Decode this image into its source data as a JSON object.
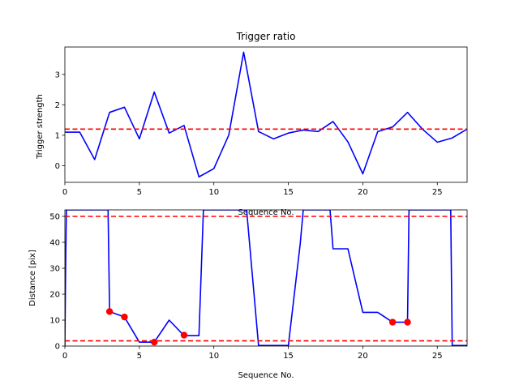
{
  "chart_data": [
    {
      "type": "line",
      "title": "Trigger ratio",
      "xlabel": "Sequence No.",
      "ylabel": "Trigger strength",
      "xlim": [
        0,
        27
      ],
      "ylim": [
        -0.55,
        3.9
      ],
      "xticks": [
        0,
        5,
        10,
        15,
        20,
        25
      ],
      "yticks": [
        0,
        1,
        2,
        3
      ],
      "grid": false,
      "series": [
        {
          "color": "#0000ff",
          "x": [
            0,
            1,
            2,
            3,
            4,
            5,
            6,
            7,
            8,
            9,
            10,
            11,
            12,
            13,
            14,
            15,
            16,
            17,
            18,
            19,
            20,
            21,
            22,
            23,
            24,
            25,
            26,
            27
          ],
          "y": [
            1.1,
            1.1,
            0.2,
            1.75,
            1.92,
            0.88,
            2.42,
            1.07,
            1.32,
            -0.37,
            -0.1,
            1.0,
            3.73,
            1.12,
            0.88,
            1.07,
            1.17,
            1.12,
            1.45,
            0.78,
            -0.27,
            1.12,
            1.27,
            1.75,
            1.2,
            0.77,
            0.91,
            1.2
          ]
        }
      ],
      "hlines": [
        {
          "y": 1.2,
          "color": "#ff0000",
          "style": "dashed"
        }
      ]
    },
    {
      "type": "line",
      "xlabel": "Sequence No.",
      "ylabel": "Distance [pix]",
      "xlim": [
        0,
        27
      ],
      "ylim": [
        0,
        52.5
      ],
      "xticks": [
        0,
        5,
        10,
        15,
        20,
        25
      ],
      "yticks": [
        0,
        10,
        20,
        30,
        40,
        50
      ],
      "grid": false,
      "series": [
        {
          "color": "#0000ff",
          "x": [
            0,
            0.05,
            0.1,
            0.15,
            2.85,
            2.9,
            3,
            4,
            5,
            6,
            7,
            8,
            9,
            9.3,
            12.2,
            13,
            14,
            15,
            15.8,
            16,
            16.1,
            17.8,
            18,
            19,
            20,
            21,
            22,
            23,
            23.1,
            25.9,
            26,
            27
          ],
          "y": [
            0,
            30,
            52.5,
            52.5,
            52.5,
            52.5,
            13.3,
            11.2,
            1.5,
            1.5,
            10,
            4,
            4,
            52.5,
            52.5,
            0.2,
            0.2,
            0.2,
            39.5,
            52.5,
            52.5,
            52.5,
            37.5,
            37.5,
            13,
            13,
            9.2,
            9.2,
            52.5,
            52.5,
            0.2,
            0.2
          ]
        }
      ],
      "markers": {
        "color": "#ff0000",
        "x": [
          3,
          4,
          6,
          8,
          22,
          23
        ],
        "y": [
          13.3,
          11.2,
          1.5,
          4.2,
          9.2,
          9.2
        ]
      },
      "hlines": [
        {
          "y": 50,
          "color": "#ff0000",
          "style": "dashed"
        },
        {
          "y": 2,
          "color": "#ff0000",
          "style": "dashed"
        }
      ]
    }
  ]
}
